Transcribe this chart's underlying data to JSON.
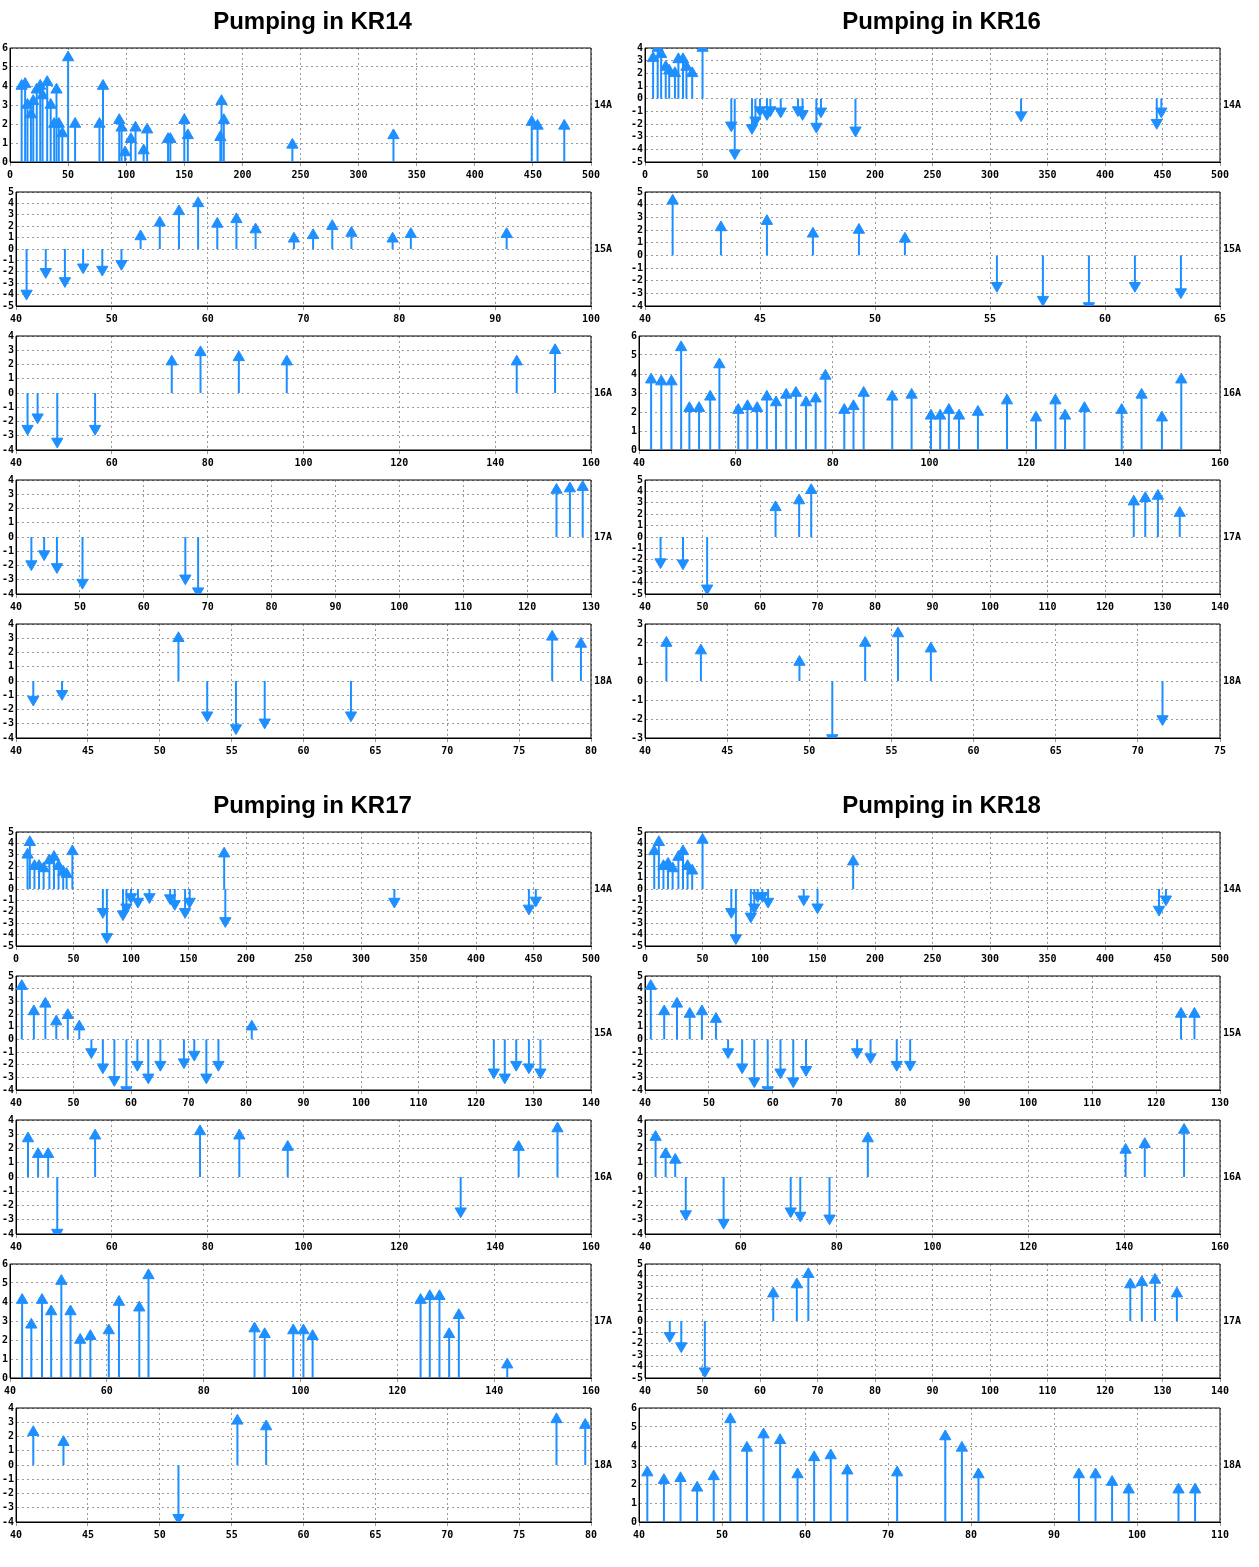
{
  "chart_data": [
    {
      "type": "lollipop",
      "title": "Pumping in KR14",
      "x": [
        10,
        13,
        15,
        18,
        20,
        23,
        26,
        28,
        32,
        35,
        38,
        40,
        42,
        45,
        50,
        56,
        77,
        80,
        94,
        96,
        99,
        104,
        108,
        115,
        118,
        136,
        138,
        150,
        153,
        181,
        182,
        184,
        243,
        330,
        449,
        454,
        477
      ],
      "values": [
        4.0,
        4.1,
        3.0,
        2.5,
        3.2,
        3.8,
        4.0,
        3.5,
        4.2,
        3.0,
        2.0,
        3.8,
        2.0,
        1.5,
        5.5,
        2.0,
        2.0,
        4.0,
        2.2,
        1.8,
        0.5,
        1.2,
        1.8,
        0.6,
        1.7,
        1.2,
        1.2,
        2.2,
        1.4,
        1.3,
        3.2,
        2.2,
        0.9,
        1.4,
        2.1,
        1.9,
        1.9
      ],
      "color": "#1e8fff",
      "xlim": [
        0,
        500
      ],
      "xticks": [
        0,
        50,
        100,
        150,
        200,
        250,
        300,
        350,
        400,
        450,
        500
      ],
      "ylim": [
        0,
        6
      ],
      "yticks": [
        0,
        1,
        2,
        3,
        4,
        5,
        6
      ],
      "grid": true,
      "marker": "triangle",
      "annotations": [
        "14A"
      ]
    },
    {
      "type": "lollipop",
      "x": [
        41.1,
        43.1,
        45.1,
        47,
        49,
        51,
        53,
        55,
        57,
        59,
        61,
        63,
        65,
        69,
        71,
        73,
        75,
        79.3,
        81.2,
        91.2
      ],
      "values": [
        -3.9,
        -2.0,
        -2.8,
        -1.6,
        -1.8,
        -1.3,
        1.1,
        2.3,
        3.3,
        4.0,
        2.2,
        2.6,
        1.7,
        0.9,
        1.2,
        2.0,
        1.4,
        0.9,
        1.3,
        1.3
      ],
      "color": "#1e8fff",
      "xlim": [
        40,
        100
      ],
      "xticks": [
        40,
        50,
        60,
        70,
        80,
        90,
        100
      ],
      "ylim": [
        -5,
        5
      ],
      "yticks": [
        -5,
        -4,
        -3,
        -2,
        -1,
        0,
        1,
        2,
        3,
        4,
        5
      ],
      "grid": true,
      "marker": "triangle",
      "annotations": [
        "15A"
      ]
    },
    {
      "type": "lollipop",
      "x": [
        42.4,
        44.5,
        48.6,
        56.5,
        72.5,
        78.5,
        86.5,
        96.5,
        144.5,
        152.5
      ],
      "values": [
        -2.5,
        -1.7,
        -3.4,
        -2.5,
        2.2,
        2.85,
        2.5,
        2.2,
        2.2,
        3.0
      ],
      "color": "#1e8fff",
      "xlim": [
        40,
        160
      ],
      "xticks": [
        40,
        60,
        80,
        100,
        120,
        140,
        160
      ],
      "ylim": [
        -4,
        4
      ],
      "yticks": [
        -4,
        -3,
        -2,
        -1,
        0,
        1,
        2,
        3,
        4
      ],
      "grid": true,
      "marker": "triangle",
      "annotations": [
        "16A"
      ]
    },
    {
      "type": "lollipop",
      "x": [
        42.4,
        44.4,
        46.4,
        50.4,
        66.5,
        68.5,
        124.6,
        126.7,
        128.7
      ],
      "values": [
        -1.9,
        -1.2,
        -2.1,
        -3.2,
        -2.9,
        -3.8,
        3.3,
        3.4,
        3.5
      ],
      "color": "#1e8fff",
      "xlim": [
        40,
        130
      ],
      "xticks": [
        40,
        50,
        60,
        70,
        80,
        90,
        100,
        110,
        120,
        130
      ],
      "ylim": [
        -4,
        4
      ],
      "yticks": [
        -4,
        -3,
        -2,
        -1,
        0,
        1,
        2,
        3,
        4
      ],
      "grid": true,
      "marker": "triangle",
      "annotations": [
        "17A"
      ]
    },
    {
      "type": "lollipop",
      "x": [
        41.2,
        43.2,
        51.3,
        53.3,
        55.3,
        57.3,
        63.3,
        77.3,
        79.3
      ],
      "values": [
        -1.3,
        -0.9,
        3.0,
        -2.4,
        -3.3,
        -2.9,
        -2.4,
        3.1,
        2.6
      ],
      "color": "#1e8fff",
      "xlim": [
        40,
        80
      ],
      "xticks": [
        40,
        45,
        50,
        55,
        60,
        65,
        70,
        75,
        80
      ],
      "ylim": [
        -4,
        4
      ],
      "yticks": [
        -4,
        -3,
        -2,
        -1,
        0,
        1,
        2,
        3,
        4
      ],
      "grid": true,
      "marker": "triangle",
      "annotations": [
        "18A"
      ]
    },
    {
      "type": "lollipop",
      "title": "Pumping in KR16",
      "x": [
        7,
        11,
        14,
        18,
        21,
        26,
        29,
        33,
        36,
        41,
        50,
        75,
        78,
        93,
        96,
        100,
        106,
        109,
        118,
        133,
        137,
        149,
        153,
        183,
        327,
        445,
        449
      ],
      "values": [
        3.2,
        4.0,
        3.5,
        2.5,
        2.2,
        2.0,
        3.1,
        3.1,
        2.5,
        2.0,
        4.0,
        -2.1,
        -4.3,
        -2.3,
        -1.7,
        -0.9,
        -1.2,
        -0.9,
        -1.0,
        -0.9,
        -1.2,
        -2.2,
        -1.0,
        -2.5,
        -1.3,
        -1.9,
        -1.0
      ],
      "color": "#1e8fff",
      "xlim": [
        0,
        500
      ],
      "xticks": [
        0,
        50,
        100,
        150,
        200,
        250,
        300,
        350,
        400,
        450,
        500
      ],
      "ylim": [
        -5,
        4
      ],
      "yticks": [
        -5,
        -4,
        -3,
        -2,
        -1,
        0,
        1,
        2,
        3,
        4
      ],
      "grid": true,
      "marker": "triangle",
      "annotations": [
        "14A"
      ]
    },
    {
      "type": "lollipop",
      "x": [
        41.2,
        43.3,
        45.3,
        47.3,
        49.3,
        51.3,
        55.3,
        57.3,
        59.3,
        61.3,
        63.3
      ],
      "values": [
        4.3,
        2.2,
        2.7,
        1.7,
        2.0,
        1.3,
        -2.4,
        -3.5,
        -4.0,
        -2.4,
        -2.9
      ],
      "color": "#1e8fff",
      "xlim": [
        40,
        65
      ],
      "xticks": [
        40,
        45,
        50,
        55,
        60,
        65
      ],
      "ylim": [
        -4,
        5
      ],
      "yticks": [
        -4,
        -3,
        -2,
        -1,
        0,
        1,
        2,
        3,
        4,
        5
      ],
      "grid": true,
      "marker": "triangle",
      "annotations": [
        "15A"
      ]
    },
    {
      "type": "lollipop",
      "x": [
        42.5,
        44.6,
        46.7,
        48.7,
        50.4,
        52.4,
        54.7,
        56.6,
        60.5,
        62.4,
        64.4,
        66.4,
        68.3,
        70.4,
        72.4,
        74.5,
        76.5,
        78.5,
        82.4,
        84.3,
        86.4,
        92.3,
        96.3,
        100.3,
        102.2,
        104,
        106.1,
        110,
        116,
        122,
        126,
        128,
        132,
        139.7,
        143.8,
        148,
        152
      ],
      "values": [
        3.7,
        3.6,
        3.6,
        5.4,
        2.2,
        2.2,
        2.8,
        4.5,
        2.1,
        2.3,
        2.2,
        2.8,
        2.5,
        2.9,
        3.0,
        2.5,
        2.7,
        3.9,
        2.1,
        2.3,
        3.0,
        2.8,
        2.9,
        1.8,
        1.8,
        2.1,
        1.8,
        2.0,
        2.6,
        1.7,
        2.6,
        1.8,
        2.2,
        2.1,
        2.9,
        1.7,
        3.7
      ],
      "color": "#1e8fff",
      "xlim": [
        40,
        160
      ],
      "xticks": [
        40,
        60,
        80,
        100,
        120,
        140,
        160
      ],
      "ylim": [
        0,
        6
      ],
      "yticks": [
        0,
        1,
        2,
        3,
        4,
        5,
        6
      ],
      "grid": true,
      "marker": "triangle",
      "annotations": [
        "16A"
      ]
    },
    {
      "type": "lollipop",
      "x": [
        42.7,
        46.6,
        50.8,
        62.7,
        66.8,
        68.9,
        125,
        127,
        129.2,
        133
      ],
      "values": [
        -2.2,
        -2.3,
        -4.5,
        2.6,
        3.2,
        4.1,
        3.1,
        3.4,
        3.6,
        2.1
      ],
      "color": "#1e8fff",
      "xlim": [
        40,
        140
      ],
      "xticks": [
        40,
        50,
        60,
        70,
        80,
        90,
        100,
        110,
        120,
        130,
        140
      ],
      "ylim": [
        -5,
        5
      ],
      "yticks": [
        -5,
        -4,
        -3,
        -2,
        -1,
        0,
        1,
        2,
        3,
        4,
        5
      ],
      "grid": true,
      "marker": "triangle",
      "annotations": [
        "17A"
      ]
    },
    {
      "type": "lollipop",
      "x": [
        41.3,
        43.4,
        49.4,
        51.4,
        53.4,
        55.4,
        57.4,
        71.5
      ],
      "values": [
        2.0,
        1.6,
        1.0,
        -3.0,
        2.0,
        2.5,
        1.7,
        -2.0
      ],
      "color": "#1e8fff",
      "xlim": [
        40,
        75
      ],
      "xticks": [
        40,
        45,
        50,
        55,
        60,
        65,
        70,
        75
      ],
      "ylim": [
        -3,
        3
      ],
      "yticks": [
        -3,
        -2,
        -1,
        0,
        1,
        2,
        3
      ],
      "grid": true,
      "marker": "triangle",
      "annotations": [
        "18A"
      ]
    },
    {
      "type": "lollipop",
      "title": "Pumping in KR17",
      "x": [
        10,
        12,
        16,
        20,
        24,
        29,
        33,
        37,
        41,
        44,
        49,
        75.5,
        79,
        93,
        96,
        100,
        106,
        116,
        134,
        138,
        147,
        151,
        181,
        182,
        329,
        446,
        452
      ],
      "values": [
        3.0,
        4.1,
        2.0,
        2.0,
        1.8,
        2.5,
        2.8,
        2.0,
        1.5,
        1.3,
        3.3,
        -2.0,
        -4.2,
        -2.2,
        -1.6,
        -0.7,
        -1.1,
        -0.7,
        -0.8,
        -1.3,
        -2.0,
        -1.1,
        3.1,
        -2.8,
        -1.1,
        -1.7,
        -1.0
      ],
      "color": "#1e8fff",
      "xlim": [
        0,
        500
      ],
      "xticks": [
        0,
        50,
        100,
        150,
        200,
        250,
        300,
        350,
        400,
        450,
        500
      ],
      "ylim": [
        -5,
        5
      ],
      "yticks": [
        -5,
        -4,
        -3,
        -2,
        -1,
        0,
        1,
        2,
        3,
        4,
        5
      ],
      "grid": true,
      "marker": "triangle",
      "annotations": [
        "14A"
      ]
    },
    {
      "type": "lollipop",
      "x": [
        41,
        43.1,
        45.1,
        47,
        49,
        51,
        53.1,
        55.1,
        57.1,
        59.2,
        61.1,
        63,
        65.1,
        69.2,
        71,
        73.1,
        75.2,
        81,
        123.1,
        125,
        127,
        129.2,
        131.2
      ],
      "values": [
        4.2,
        2.2,
        2.8,
        1.4,
        1.9,
        1.0,
        -1.0,
        -2.2,
        -3.2,
        -4.0,
        -2.0,
        -3.0,
        -2.0,
        -1.8,
        -1.2,
        -3.0,
        -2.0,
        1.0,
        -2.6,
        -3.0,
        -2.0,
        -2.2,
        -2.6
      ],
      "color": "#1e8fff",
      "xlim": [
        40,
        140
      ],
      "xticks": [
        40,
        50,
        60,
        70,
        80,
        90,
        100,
        110,
        120,
        130,
        140
      ],
      "ylim": [
        -4,
        5
      ],
      "yticks": [
        -4,
        -3,
        -2,
        -1,
        0,
        1,
        2,
        3,
        4,
        5
      ],
      "grid": true,
      "marker": "triangle",
      "annotations": [
        "15A"
      ]
    },
    {
      "type": "lollipop",
      "x": [
        42.5,
        44.6,
        46.7,
        48.6,
        56.5,
        78.4,
        86.6,
        96.7,
        132.8,
        144.9,
        153
      ],
      "values": [
        2.7,
        1.6,
        1.6,
        -3.9,
        2.9,
        3.2,
        2.9,
        2.1,
        -2.4,
        2.1,
        3.4
      ],
      "color": "#1e8fff",
      "xlim": [
        40,
        160
      ],
      "xticks": [
        40,
        60,
        80,
        100,
        120,
        140,
        160
      ],
      "ylim": [
        -4,
        4
      ],
      "yticks": [
        -4,
        -3,
        -2,
        -1,
        0,
        1,
        2,
        3,
        4
      ],
      "grid": true,
      "marker": "triangle",
      "annotations": [
        "16A"
      ]
    },
    {
      "type": "lollipop",
      "x": [
        42.5,
        44.4,
        46.6,
        48.5,
        50.6,
        52.5,
        54.5,
        56.6,
        60.4,
        62.5,
        66.7,
        68.6,
        90.5,
        92.6,
        98.5,
        100.6,
        102.5,
        124.8,
        126.7,
        128.7,
        130.7,
        132.7,
        142.7
      ],
      "values": [
        4.1,
        2.8,
        4.1,
        3.5,
        5.1,
        3.5,
        2.0,
        2.2,
        2.5,
        4.0,
        3.7,
        5.4,
        2.6,
        2.3,
        2.5,
        2.5,
        2.2,
        4.1,
        4.3,
        4.3,
        2.3,
        3.3,
        0.7
      ],
      "color": "#1e8fff",
      "xlim": [
        40,
        160
      ],
      "xticks": [
        40,
        60,
        80,
        100,
        120,
        140,
        160
      ],
      "ylim": [
        0,
        6
      ],
      "yticks": [
        0,
        1,
        2,
        3,
        4,
        5,
        6
      ],
      "grid": true,
      "marker": "triangle",
      "annotations": [
        "17A"
      ]
    },
    {
      "type": "lollipop",
      "x": [
        41.2,
        43.3,
        51.3,
        55.4,
        57.4,
        77.6,
        79.6
      ],
      "values": [
        2.3,
        1.6,
        -3.7,
        3.1,
        2.7,
        3.2,
        2.8
      ],
      "color": "#1e8fff",
      "xlim": [
        40,
        80
      ],
      "xticks": [
        40,
        45,
        50,
        55,
        60,
        65,
        70,
        75,
        80
      ],
      "ylim": [
        -4,
        4
      ],
      "yticks": [
        -4,
        -3,
        -2,
        -1,
        0,
        1,
        2,
        3,
        4
      ],
      "grid": true,
      "marker": "triangle",
      "annotations": [
        "18A"
      ]
    },
    {
      "type": "lollipop",
      "title": "Pumping in KR18",
      "x": [
        8,
        12,
        16,
        20,
        24,
        29,
        33,
        37,
        41,
        50,
        75,
        79,
        92,
        95,
        98,
        102,
        107,
        138,
        150,
        181,
        447,
        453
      ],
      "values": [
        3.3,
        4.1,
        2.0,
        2.2,
        1.8,
        2.8,
        3.3,
        2.0,
        1.6,
        4.3,
        -2.0,
        -4.3,
        -2.4,
        -1.6,
        -0.6,
        -0.6,
        -1.1,
        -0.9,
        -1.6,
        2.4,
        -1.8,
        -0.9
      ],
      "color": "#1e8fff",
      "xlim": [
        0,
        500
      ],
      "xticks": [
        0,
        50,
        100,
        150,
        200,
        250,
        300,
        350,
        400,
        450,
        500
      ],
      "ylim": [
        -5,
        5
      ],
      "yticks": [
        -5,
        -4,
        -3,
        -2,
        -1,
        0,
        1,
        2,
        3,
        4,
        5
      ],
      "grid": true,
      "marker": "triangle",
      "annotations": [
        "14A"
      ]
    },
    {
      "type": "lollipop",
      "x": [
        40.9,
        43,
        45,
        47,
        48.9,
        51.1,
        53,
        55.2,
        57.1,
        59.2,
        61.2,
        63.2,
        65.2,
        73.2,
        75.3,
        79.4,
        81.5,
        123.9,
        126
      ],
      "values": [
        4.2,
        2.2,
        2.8,
        2.0,
        2.2,
        1.6,
        -1.0,
        -2.2,
        -3.3,
        -4.0,
        -2.6,
        -3.3,
        -2.4,
        -1.0,
        -1.4,
        -2.0,
        -2.0,
        2.0,
        2.0
      ],
      "color": "#1e8fff",
      "xlim": [
        40,
        130
      ],
      "xticks": [
        40,
        50,
        60,
        70,
        80,
        90,
        100,
        110,
        120,
        130
      ],
      "ylim": [
        -4,
        5
      ],
      "yticks": [
        -4,
        -3,
        -2,
        -1,
        0,
        1,
        2,
        3,
        4,
        5
      ],
      "grid": true,
      "marker": "triangle",
      "annotations": [
        "15A"
      ]
    },
    {
      "type": "lollipop",
      "x": [
        42.2,
        44.3,
        46.3,
        48.5,
        56.4,
        70.4,
        72.4,
        78.5,
        86.5,
        140.3,
        144.3,
        152.5
      ],
      "values": [
        2.8,
        1.6,
        1.2,
        -2.6,
        -3.2,
        -2.4,
        -2.7,
        -2.9,
        2.7,
        1.9,
        2.3,
        3.3
      ],
      "color": "#1e8fff",
      "xlim": [
        40,
        160
      ],
      "xticks": [
        40,
        60,
        80,
        100,
        120,
        140,
        160
      ],
      "ylim": [
        -4,
        4
      ],
      "yticks": [
        -4,
        -3,
        -2,
        -1,
        0,
        1,
        2,
        3,
        4
      ],
      "grid": true,
      "marker": "triangle",
      "annotations": [
        "16A"
      ]
    },
    {
      "type": "lollipop",
      "x": [
        44.3,
        46.3,
        50.4,
        62.3,
        66.4,
        68.4,
        124.4,
        126.4,
        128.7,
        132.5
      ],
      "values": [
        -1.3,
        -2.2,
        -4.4,
        2.4,
        3.2,
        4.1,
        3.2,
        3.4,
        3.6,
        2.4
      ],
      "color": "#1e8fff",
      "xlim": [
        40,
        140
      ],
      "xticks": [
        40,
        50,
        60,
        70,
        80,
        90,
        100,
        110,
        120,
        130,
        140
      ],
      "ylim": [
        -5,
        5
      ],
      "yticks": [
        -5,
        -4,
        -3,
        -2,
        -1,
        0,
        1,
        2,
        3,
        4,
        5
      ],
      "grid": true,
      "marker": "triangle",
      "annotations": [
        "17A"
      ]
    },
    {
      "type": "lollipop",
      "x": [
        41,
        43,
        45,
        47,
        49,
        51,
        53,
        55,
        57,
        59.1,
        61.1,
        63.1,
        65.1,
        71.1,
        76.9,
        78.9,
        80.9,
        93,
        95,
        97,
        99,
        105,
        107
      ],
      "values": [
        2.6,
        2.2,
        2.3,
        1.8,
        2.4,
        5.4,
        3.9,
        4.6,
        4.3,
        2.5,
        3.4,
        3.5,
        2.7,
        2.6,
        4.5,
        3.9,
        2.5,
        2.5,
        2.5,
        2.1,
        1.7,
        1.7,
        1.7
      ],
      "color": "#1e8fff",
      "xlim": [
        40,
        110
      ],
      "xticks": [
        40,
        50,
        60,
        70,
        80,
        90,
        100,
        110
      ],
      "ylim": [
        0,
        6
      ],
      "yticks": [
        0,
        1,
        2,
        3,
        4,
        5,
        6
      ],
      "grid": true,
      "marker": "triangle",
      "annotations": [
        "18A"
      ]
    }
  ]
}
